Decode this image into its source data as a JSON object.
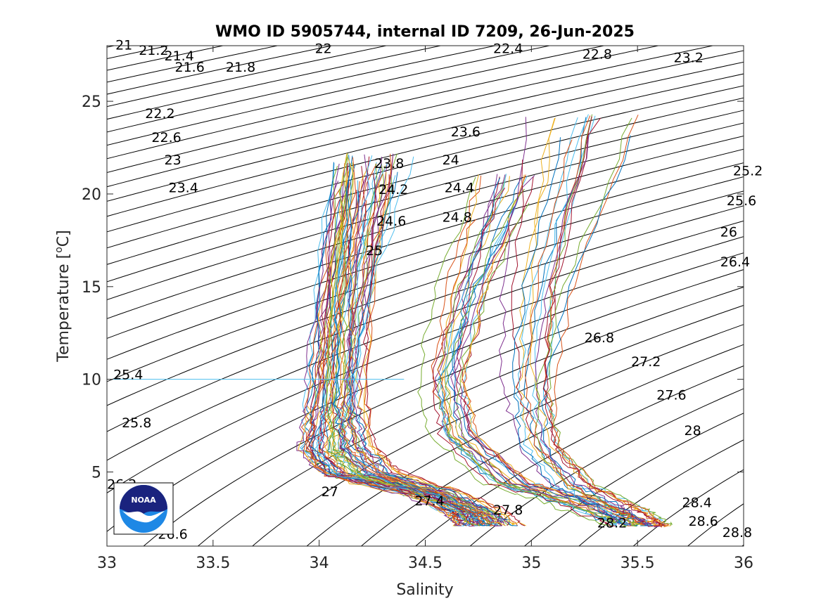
{
  "chart_data": {
    "type": "line",
    "title": "WMO ID 5905744, internal ID 7209, 26-Jun-2025",
    "xlabel": "Salinity",
    "ylabel": "Temperature [",
    "ylabel_sup": "o",
    "ylabel_end": "C]",
    "xlim": [
      33,
      36
    ],
    "ylim": [
      1,
      28
    ],
    "xticks": [
      33,
      33.5,
      34,
      34.5,
      35,
      35.5,
      36
    ],
    "xtick_labels": [
      "33",
      "33.5",
      "34",
      "34.5",
      "35",
      "35.5",
      "36"
    ],
    "yticks": [
      5,
      10,
      15,
      20,
      25
    ],
    "ytick_labels": [
      "5",
      "10",
      "15",
      "20",
      "25"
    ],
    "grid": false,
    "isopycnals": {
      "sigma_min": 20.6,
      "sigma_max": 29.2,
      "step": 0.2,
      "color": "#000000",
      "labels": [
        {
          "text": "21",
          "s": 33.04,
          "t": 27.8
        },
        {
          "text": "21.2",
          "s": 33.15,
          "t": 27.5
        },
        {
          "text": "21.4",
          "s": 33.27,
          "t": 27.2
        },
        {
          "text": "21.6",
          "s": 33.32,
          "t": 26.6
        },
        {
          "text": "21.8",
          "s": 33.56,
          "t": 26.6
        },
        {
          "text": "22",
          "s": 33.98,
          "t": 27.6
        },
        {
          "text": "22.4",
          "s": 34.82,
          "t": 27.6
        },
        {
          "text": "22.8",
          "s": 35.24,
          "t": 27.3
        },
        {
          "text": "23.2",
          "s": 35.67,
          "t": 27.1
        },
        {
          "text": "22.2",
          "s": 33.18,
          "t": 24.1
        },
        {
          "text": "22.6",
          "s": 33.21,
          "t": 22.8
        },
        {
          "text": "23",
          "s": 33.27,
          "t": 21.6
        },
        {
          "text": "23.4",
          "s": 33.29,
          "t": 20.1
        },
        {
          "text": "23.6",
          "s": 34.62,
          "t": 23.1
        },
        {
          "text": "23.8",
          "s": 34.26,
          "t": 21.4
        },
        {
          "text": "24",
          "s": 34.58,
          "t": 21.6
        },
        {
          "text": "24.2",
          "s": 34.28,
          "t": 20.0
        },
        {
          "text": "24.4",
          "s": 34.59,
          "t": 20.1
        },
        {
          "text": "24.6",
          "s": 34.27,
          "t": 18.3
        },
        {
          "text": "24.8",
          "s": 34.58,
          "t": 18.5
        },
        {
          "text": "25",
          "s": 34.22,
          "t": 16.7
        },
        {
          "text": "25.2",
          "s": 35.95,
          "t": 21.0
        },
        {
          "text": "25.6",
          "s": 35.92,
          "t": 19.4
        },
        {
          "text": "26",
          "s": 35.89,
          "t": 17.7
        },
        {
          "text": "26.4",
          "s": 35.89,
          "t": 16.1
        },
        {
          "text": "25.4",
          "s": 33.03,
          "t": 10.0
        },
        {
          "text": "25.8",
          "s": 33.07,
          "t": 7.4
        },
        {
          "text": "26.8",
          "s": 35.25,
          "t": 12.0
        },
        {
          "text": "27.2",
          "s": 35.47,
          "t": 10.7
        },
        {
          "text": "27.6",
          "s": 35.59,
          "t": 8.9
        },
        {
          "text": "28",
          "s": 35.72,
          "t": 7.0
        },
        {
          "text": "26.2",
          "s": 33.0,
          "t": 4.1
        },
        {
          "text": "26.6",
          "s": 33.24,
          "t": 1.4
        },
        {
          "text": "27",
          "s": 34.01,
          "t": 3.7
        },
        {
          "text": "27.4",
          "s": 34.45,
          "t": 3.2
        },
        {
          "text": "27.8",
          "s": 34.82,
          "t": 2.7
        },
        {
          "text": "28.2",
          "s": 35.31,
          "t": 2.0
        },
        {
          "text": "28.4",
          "s": 35.71,
          "t": 3.1
        },
        {
          "text": "28.6",
          "s": 35.74,
          "t": 2.1
        },
        {
          "text": "28.8",
          "s": 35.9,
          "t": 1.5
        }
      ]
    },
    "profile_groups": [
      {
        "count": 34,
        "path": [
          [
            34.2,
            21.6
          ],
          [
            34.08,
            14.0
          ],
          [
            34.03,
            8.6
          ],
          [
            34.0,
            6.2
          ],
          [
            34.1,
            4.9
          ],
          [
            34.5,
            3.8
          ],
          [
            34.7,
            2.8
          ],
          [
            34.75,
            2.1
          ]
        ],
        "spread": [
          0.28,
          0.22
        ]
      },
      {
        "count": 26,
        "path": [
          [
            34.28,
            22.1
          ],
          [
            34.18,
            14.2
          ],
          [
            34.15,
            8.6
          ],
          [
            34.18,
            6.3
          ],
          [
            34.3,
            4.9
          ],
          [
            34.6,
            3.8
          ],
          [
            34.78,
            2.8
          ],
          [
            34.85,
            2.1
          ]
        ],
        "spread": [
          0.35,
          0.25
        ]
      },
      {
        "count": 22,
        "path": [
          [
            34.9,
            21.0
          ],
          [
            34.7,
            15.0
          ],
          [
            34.6,
            10.0
          ],
          [
            34.65,
            7.0
          ],
          [
            34.9,
            4.4
          ],
          [
            35.2,
            3.4
          ],
          [
            35.4,
            2.5
          ],
          [
            35.5,
            2.1
          ]
        ],
        "spread": [
          0.35,
          0.25
        ]
      },
      {
        "count": 18,
        "path": [
          [
            35.25,
            24.2
          ],
          [
            35.05,
            15.0
          ],
          [
            35.0,
            9.5
          ],
          [
            35.05,
            6.4
          ],
          [
            35.2,
            4.3
          ],
          [
            35.4,
            3.2
          ],
          [
            35.5,
            2.5
          ],
          [
            35.55,
            2.1
          ]
        ],
        "spread": [
          0.5,
          0.22
        ]
      }
    ],
    "outlier": {
      "t": 10.0,
      "s_start": 33.03,
      "s_end": 34.4,
      "color": "#4dbeee"
    },
    "series_colors": [
      "#0072bd",
      "#d95319",
      "#edb120",
      "#7e2f8e",
      "#77ac30",
      "#4dbeee",
      "#a2142f"
    ]
  },
  "logo": {
    "text": "NOAA",
    "colors": {
      "navy": "#1a237e",
      "light_blue": "#1e88e5",
      "sky": "#4fc3f7"
    }
  }
}
